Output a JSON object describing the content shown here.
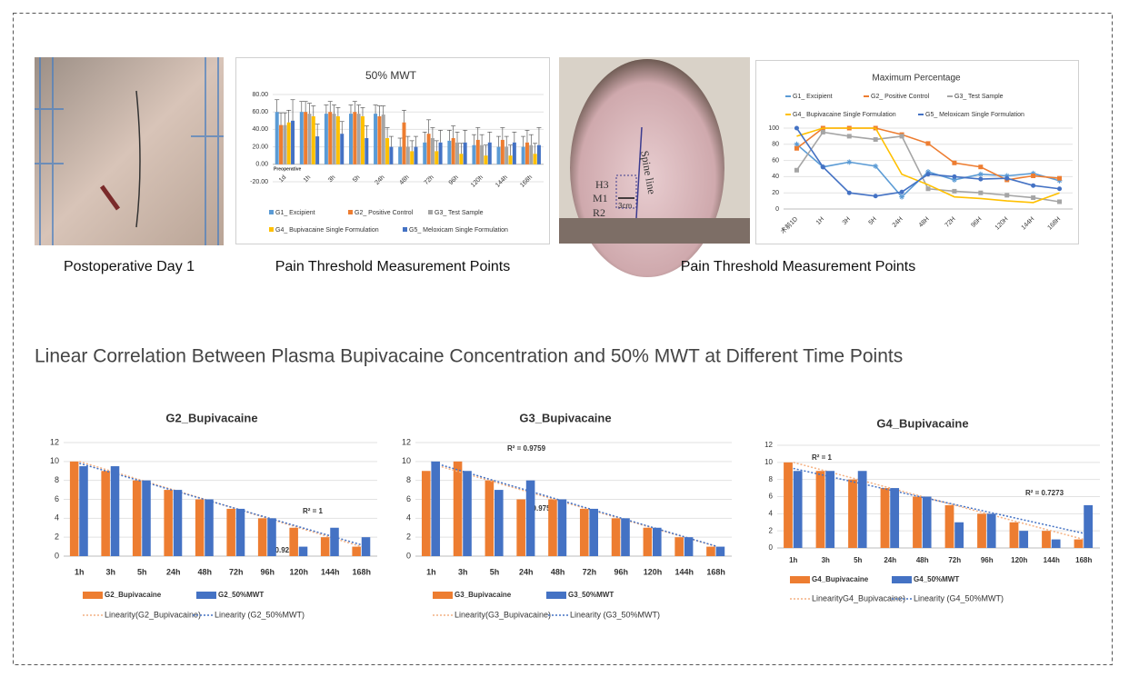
{
  "heading": "Linear Correlation Between Plasma Bupivacaine Concentration and 50% MWT at Different Time Points",
  "captions": [
    "Postoperative Day 1",
    "Pain Threshold Measurement Points",
    "Pain Threshold Measurement Points"
  ],
  "photo_labels": {
    "markers": [
      "H3",
      "M1",
      "R2"
    ],
    "spine": "Spine line",
    "distance": "3cm"
  },
  "chart_data": [
    {
      "type": "bar",
      "title": "50% MWT",
      "annotation": "Preoperative",
      "categories": [
        "1d",
        "1h",
        "3h",
        "5h",
        "24h",
        "48h",
        "72h",
        "96h",
        "120h",
        "144h",
        "168h"
      ],
      "series": [
        {
          "name": "G1_ Excipient",
          "color": "#5b9bd5",
          "values": [
            60,
            60,
            58,
            58,
            58,
            20,
            25,
            27,
            22,
            20,
            20
          ],
          "errors": [
            14,
            12,
            10,
            10,
            10,
            10,
            12,
            12,
            12,
            12,
            12
          ]
        },
        {
          "name": "G2_ Positive Control",
          "color": "#ed7d31",
          "values": [
            45,
            60,
            60,
            60,
            55,
            48,
            35,
            30,
            28,
            28,
            25
          ],
          "errors": [
            14,
            12,
            12,
            12,
            12,
            14,
            16,
            14,
            14,
            14,
            14
          ]
        },
        {
          "name": "G3_ Test Sample",
          "color": "#a5a5a5",
          "values": [
            45,
            58,
            58,
            58,
            57,
            20,
            30,
            25,
            22,
            20,
            22
          ],
          "errors": [
            14,
            12,
            10,
            10,
            10,
            12,
            12,
            12,
            12,
            12,
            12
          ]
        },
        {
          "name": "G4_ Bupivacaine Single Formulation",
          "color": "#ffc000",
          "values": [
            48,
            55,
            55,
            55,
            30,
            15,
            15,
            12,
            10,
            10,
            12
          ],
          "errors": [
            14,
            12,
            10,
            10,
            12,
            12,
            12,
            12,
            12,
            12,
            12
          ]
        },
        {
          "name": "G5_ Meloxicam Single Formulation",
          "color": "#4472c4",
          "values": [
            50,
            32,
            35,
            30,
            20,
            20,
            25,
            25,
            25,
            25,
            22
          ],
          "errors": [
            24,
            14,
            14,
            14,
            12,
            12,
            14,
            14,
            12,
            12,
            20
          ]
        }
      ],
      "ylim": [
        -20,
        80
      ],
      "yticks": [
        {
          "value": -20,
          "label": "-20.00"
        },
        {
          "value": 0,
          "label": "0.00"
        },
        {
          "value": 20,
          "label": "20.00"
        },
        {
          "value": 40,
          "label": "40.00"
        },
        {
          "value": 60,
          "label": "60.00"
        },
        {
          "value": 80,
          "label": "80.00"
        }
      ],
      "grid": true,
      "legend": "bottom"
    },
    {
      "type": "line",
      "title": "Maximum Percentage",
      "categories": [
        "术前1D",
        "1H",
        "3H",
        "5H",
        "24H",
        "48H",
        "72H",
        "96H",
        "120H",
        "144H",
        "168H"
      ],
      "series": [
        {
          "name": "G1_ Excipient",
          "color": "#5b9bd5",
          "marker": "star",
          "values": [
            80,
            52,
            58,
            53,
            15,
            46,
            36,
            43,
            41,
            44,
            35
          ]
        },
        {
          "name": "G2_ Positive Control",
          "color": "#ed7d31",
          "marker": "square",
          "values": [
            75,
            100,
            100,
            100,
            92,
            81,
            57,
            52,
            36,
            41,
            38
          ]
        },
        {
          "name": "G3_ Test Sample",
          "color": "#a5a5a5",
          "marker": "square",
          "values": [
            48,
            95,
            90,
            86,
            90,
            25,
            22,
            20,
            17,
            14,
            9
          ]
        },
        {
          "name": "G4_ Bupivacaine Single Formulation",
          "color": "#ffc000",
          "marker": "none",
          "values": [
            90,
            100,
            100,
            100,
            43,
            30,
            15,
            13,
            10,
            8,
            20
          ]
        },
        {
          "name": "G5_ Meloxicam Single Formulation",
          "color": "#4472c4",
          "marker": "circle",
          "values": [
            100,
            52,
            20,
            16,
            21,
            43,
            40,
            37,
            38,
            29,
            25
          ]
        }
      ],
      "ylim": [
        0,
        100
      ],
      "yticks": [
        0,
        20,
        40,
        60,
        80,
        100
      ],
      "grid": true,
      "legend": "top"
    },
    {
      "type": "bar",
      "title": "G2_Bupivacaine",
      "categories": [
        "1h",
        "3h",
        "5h",
        "24h",
        "48h",
        "72h",
        "96h",
        "120h",
        "144h",
        "168h"
      ],
      "series": [
        {
          "name": "G2_Bupivacaine",
          "color": "#ed7d31",
          "values": [
            10,
            9,
            8,
            7,
            6,
            5,
            4,
            3,
            2,
            1
          ]
        },
        {
          "name": "G2_50%MWT",
          "color": "#4472c4",
          "values": [
            9.5,
            9.5,
            8,
            7,
            6,
            5,
            4,
            1,
            3,
            2
          ]
        }
      ],
      "trendline": true,
      "trendline_labels": [
        "Linearity(G2_Bupivacaine)",
        "Linearity (G2_50%MWT)"
      ],
      "annotations": [
        "R² = 1",
        "R² = 0.9225"
      ],
      "ylim": [
        0,
        12
      ],
      "yticks": [
        0,
        2,
        4,
        6,
        8,
        10,
        12
      ],
      "grid": true,
      "legend": "bottom"
    },
    {
      "type": "bar",
      "title": "G3_Bupivacaine",
      "categories": [
        "1h",
        "3h",
        "5h",
        "24h",
        "48h",
        "72h",
        "96h",
        "120h",
        "144h",
        "168h"
      ],
      "series": [
        {
          "name": "G3_Bupivacaine",
          "color": "#ed7d31",
          "values": [
            9,
            10,
            8,
            6,
            6,
            5,
            4,
            3,
            2,
            1
          ]
        },
        {
          "name": "G3_50%MWT",
          "color": "#4472c4",
          "values": [
            10,
            9,
            7,
            8,
            6,
            5,
            4,
            3,
            2,
            1
          ]
        }
      ],
      "trendline": true,
      "trendline_labels": [
        "Linearity(G3_Bupivacaine)",
        "Linearity (G3_50%MWT)"
      ],
      "annotations": [
        "R² = 0.9759",
        "R² = 0.9759"
      ],
      "ylim": [
        0,
        12
      ],
      "yticks": [
        0,
        2,
        4,
        6,
        8,
        10,
        12
      ],
      "grid": true,
      "legend": "bottom"
    },
    {
      "type": "bar",
      "title": "G4_Bupivacaine",
      "categories": [
        "1h",
        "3h",
        "5h",
        "24h",
        "48h",
        "72h",
        "96h",
        "120h",
        "144h",
        "168h"
      ],
      "series": [
        {
          "name": "G4_Bupivacaine",
          "color": "#ed7d31",
          "values": [
            10,
            9,
            8,
            7,
            6,
            5,
            4,
            3,
            2,
            1
          ]
        },
        {
          "name": "G4_50%MWT",
          "color": "#4472c4",
          "values": [
            9,
            9,
            9,
            7,
            6,
            3,
            4,
            2,
            1,
            5
          ]
        }
      ],
      "trendline": true,
      "trendline_labels": [
        "LinearityG4_Bupivacaine)",
        "Linearity (G4_50%MWT)"
      ],
      "annotations": [
        "R² = 1",
        "R² = 0.7273"
      ],
      "ylim": [
        0,
        12
      ],
      "yticks": [
        0,
        2,
        4,
        6,
        8,
        10,
        12
      ],
      "grid": true,
      "legend": "bottom"
    }
  ]
}
